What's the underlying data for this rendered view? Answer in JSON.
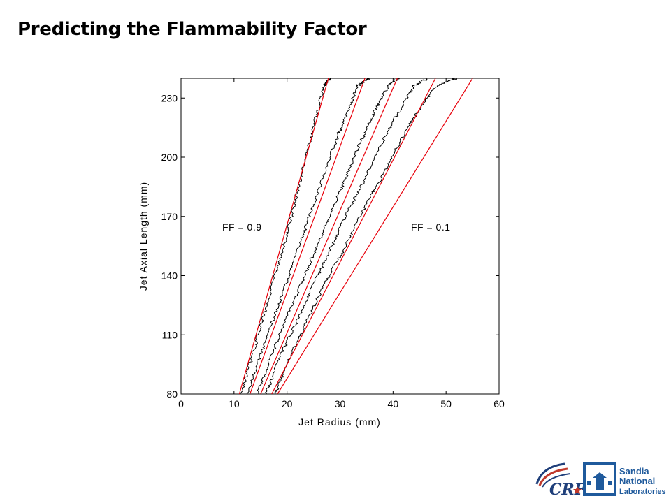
{
  "slide": {
    "title": "Predicting the Flammability Factor"
  },
  "chart_data": {
    "type": "line",
    "title": "",
    "xlabel": "Jet Radius (mm)",
    "ylabel": "Jet Axial Length (mm)",
    "xlim": [
      0,
      60
    ],
    "ylim": [
      80,
      240
    ],
    "xticks": [
      0,
      10,
      20,
      30,
      40,
      50,
      60
    ],
    "yticks": [
      80,
      110,
      140,
      170,
      200,
      230
    ],
    "grid": false,
    "annotations": [
      {
        "text": "FF = 0.9",
        "x": 8,
        "y": 168
      },
      {
        "text": "FF = 0.1",
        "x": 44,
        "y": 168
      }
    ],
    "series": [
      {
        "kind": "measured",
        "color": "#000000",
        "x": [
          11.3,
          13.3,
          15.2,
          17.2,
          19.1,
          20.9,
          22.5,
          24.1,
          25.6,
          27.0,
          28.2
        ],
        "y": [
          80,
          98,
          116,
          134,
          152,
          170,
          188,
          206,
          222,
          236,
          240
        ]
      },
      {
        "kind": "measured",
        "color": "#000000",
        "x": [
          12.6,
          14.8,
          17.2,
          19.6,
          21.9,
          24.2,
          26.6,
          28.9,
          31.2,
          33.4,
          35.4
        ],
        "y": [
          80,
          98,
          116,
          134,
          152,
          170,
          188,
          206,
          222,
          236,
          240
        ]
      },
      {
        "kind": "measured",
        "color": "#000000",
        "x": [
          14.4,
          16.8,
          19.6,
          22.4,
          25.2,
          28.0,
          30.8,
          33.6,
          36.3,
          39.0,
          41.3
        ],
        "y": [
          80,
          98,
          116,
          134,
          152,
          170,
          188,
          206,
          222,
          236,
          240
        ]
      },
      {
        "kind": "measured",
        "color": "#000000",
        "x": [
          16.0,
          18.6,
          21.7,
          24.8,
          27.9,
          31.1,
          34.5,
          37.7,
          40.9,
          44.0,
          46.6
        ],
        "y": [
          80,
          98,
          116,
          134,
          152,
          170,
          188,
          206,
          222,
          236,
          240
        ]
      },
      {
        "kind": "measured",
        "color": "#000000",
        "x": [
          17.8,
          20.5,
          23.6,
          26.9,
          30.4,
          33.8,
          37.5,
          41.0,
          44.4,
          48.3,
          52.4
        ],
        "y": [
          80,
          98,
          116,
          134,
          152,
          170,
          188,
          206,
          222,
          236,
          240
        ]
      },
      {
        "kind": "predicted",
        "color": "#e8000b",
        "x": [
          11.0,
          27.8
        ],
        "y": [
          80,
          240
        ]
      },
      {
        "kind": "predicted",
        "color": "#e8000b",
        "x": [
          13.0,
          34.7
        ],
        "y": [
          80,
          240
        ]
      },
      {
        "kind": "predicted",
        "color": "#e8000b",
        "x": [
          15.0,
          40.8
        ],
        "y": [
          80,
          240
        ]
      },
      {
        "kind": "predicted",
        "color": "#e8000b",
        "x": [
          17.1,
          48.0
        ],
        "y": [
          80,
          240
        ]
      },
      {
        "kind": "predicted",
        "color": "#e8000b",
        "x": [
          18.2,
          55.0
        ],
        "y": [
          80,
          240
        ]
      }
    ]
  },
  "logos": {
    "crf": {
      "text": "CRF",
      "icon": "crf-logo-icon"
    },
    "sandia": {
      "line1": "Sandia",
      "line2": "National",
      "line3": "Laboratories",
      "icon": "sandia-thunderbird-icon",
      "color": "#1f5a9c"
    }
  }
}
